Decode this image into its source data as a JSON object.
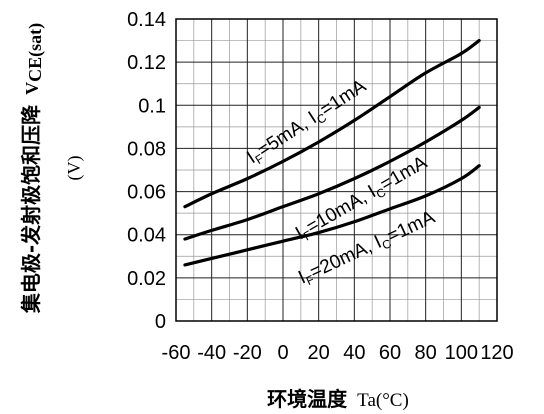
{
  "chart_data": {
    "type": "line",
    "x_ticks": [
      "-60",
      "-40",
      "-20",
      "0",
      "20",
      "40",
      "60",
      "80",
      "100",
      "120"
    ],
    "y_ticks": [
      "0",
      "0.02",
      "0.04",
      "0.06",
      "0.08",
      "0.1",
      "0.12",
      "0.14"
    ],
    "xlim": [
      -60,
      120
    ],
    "ylim": [
      0,
      0.14
    ],
    "grid": true,
    "xlabel": {
      "main": "环境温度",
      "unit": "Ta(°C)"
    },
    "ylabel": {
      "main": "集电极-发射极饱和压降",
      "symbol": "V",
      "symbol_sub": "CE(sat)",
      "unit": "(V)"
    },
    "series": [
      {
        "label": {
          "a": "I",
          "a_sub": "F",
          "b": "=5mA, I",
          "b_sub": "C",
          "c": "=1mA"
        },
        "x": [
          -55,
          -40,
          -20,
          0,
          20,
          40,
          60,
          80,
          100,
          110
        ],
        "y": [
          0.053,
          0.059,
          0.066,
          0.074,
          0.083,
          0.093,
          0.104,
          0.115,
          0.124,
          0.13
        ]
      },
      {
        "label": {
          "a": "I",
          "a_sub": "F",
          "b": "=10mA, I",
          "b_sub": "C",
          "c": "=1mA"
        },
        "x": [
          -55,
          -40,
          -20,
          0,
          20,
          40,
          60,
          80,
          100,
          110
        ],
        "y": [
          0.038,
          0.042,
          0.047,
          0.053,
          0.059,
          0.066,
          0.074,
          0.083,
          0.093,
          0.099
        ]
      },
      {
        "label": {
          "a": "I",
          "a_sub": "F",
          "b": "=20mA, I",
          "b_sub": "C",
          "c": "=1mA"
        },
        "x": [
          -55,
          -40,
          -20,
          0,
          20,
          40,
          60,
          80,
          100,
          110
        ],
        "y": [
          0.026,
          0.029,
          0.033,
          0.037,
          0.041,
          0.046,
          0.052,
          0.058,
          0.066,
          0.072
        ]
      }
    ]
  }
}
